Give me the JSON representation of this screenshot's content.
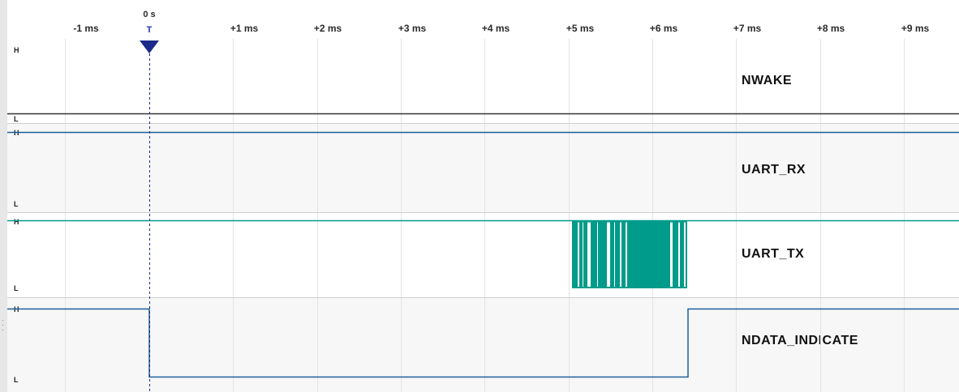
{
  "ruler": {
    "trigger_time": "0 s",
    "trigger_label": "T",
    "ticks": [
      "-1 ms",
      "+1 ms",
      "+2 ms",
      "+3 ms",
      "+4 ms",
      "+5 ms",
      "+6 ms",
      "+7 ms",
      "+8 ms",
      "+9 ms"
    ]
  },
  "signals": [
    {
      "name": "NWAKE",
      "high_label": "H",
      "low_label": "L",
      "color": "#333333",
      "state": "low"
    },
    {
      "name": "UART_RX",
      "high_label": "H",
      "low_label": "L",
      "color": "#1f5e99",
      "state": "high"
    },
    {
      "name": "UART_TX",
      "high_label": "H",
      "low_label": "L",
      "color": "#009b8a",
      "state": "high, burst activity around +5 ms to +6.5 ms"
    },
    {
      "name": "NDATA_INDICATE",
      "high_label": "H",
      "low_label": "L",
      "color": "#1f5e99",
      "state": "high, low from 0 s to +6.5 ms, then high"
    }
  ],
  "colors": {
    "trigger": "#1b2b8a",
    "grid": "#e4e4e4",
    "gutter": "#e7e7e7"
  }
}
